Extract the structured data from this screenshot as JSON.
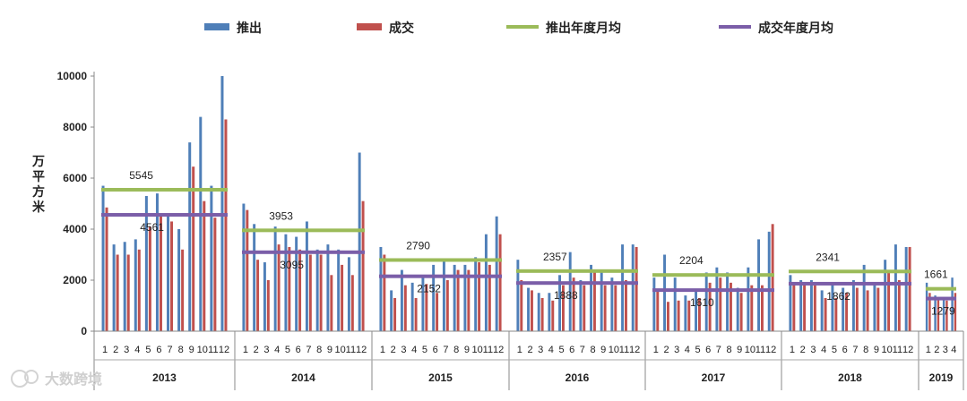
{
  "chart_data": {
    "type": "bar",
    "title": "",
    "ylabel": "万平方米",
    "ylim": [
      0,
      10000
    ],
    "yticks": [
      "0",
      "2000",
      "4000",
      "6000",
      "8000",
      "10000"
    ],
    "legend_position": "top",
    "legend": [
      {
        "name": "推出",
        "color": "#4f7fb8",
        "kind": "bar"
      },
      {
        "name": "成交",
        "color": "#c0504d",
        "kind": "bar"
      },
      {
        "name": "推出年度月均",
        "color": "#9bbb59",
        "kind": "line"
      },
      {
        "name": "成交年度月均",
        "color": "#7b5ea8",
        "kind": "line"
      }
    ],
    "years": [
      {
        "year": "2013",
        "months": [
          "1",
          "2",
          "3",
          "4",
          "5",
          "6",
          "7",
          "8",
          "9",
          "10",
          "11",
          "12"
        ],
        "supply": [
          5700,
          3400,
          3500,
          3600,
          5300,
          5400,
          4600,
          4000,
          7400,
          8400,
          5700,
          10000
        ],
        "deal": [
          4850,
          3000,
          3000,
          3200,
          4100,
          4500,
          4300,
          3200,
          6450,
          5100,
          4450,
          8300
        ],
        "supply_avg": 5545,
        "supply_avg_label": "5545",
        "deal_avg": 4561,
        "deal_avg_label": "4561"
      },
      {
        "year": "2014",
        "months": [
          "1",
          "2",
          "3",
          "4",
          "5",
          "6",
          "7",
          "8",
          "9",
          "10",
          "11",
          "12"
        ],
        "supply": [
          5000,
          4200,
          2700,
          4100,
          3800,
          3700,
          4300,
          3200,
          3400,
          3200,
          2900,
          7000
        ],
        "deal": [
          4750,
          2800,
          2000,
          3400,
          3300,
          3200,
          3000,
          3000,
          2200,
          2600,
          2200,
          5100
        ],
        "supply_avg": 3953,
        "supply_avg_label": "3953",
        "deal_avg": 3095,
        "deal_avg_label": "3095"
      },
      {
        "year": "2015",
        "months": [
          "1",
          "2",
          "3",
          "4",
          "5",
          "6",
          "7",
          "8",
          "9",
          "10",
          "11",
          "12"
        ],
        "supply": [
          3300,
          1600,
          2400,
          1900,
          2200,
          2600,
          2800,
          2600,
          2600,
          2900,
          3800,
          4500
        ],
        "deal": [
          3000,
          1300,
          1800,
          1300,
          1850,
          1500,
          2000,
          2400,
          2400,
          2700,
          2600,
          3800
        ],
        "supply_avg": 2790,
        "supply_avg_label": "2790",
        "deal_avg": 2152,
        "deal_avg_label": "2152"
      },
      {
        "year": "2016",
        "months": [
          "1",
          "2",
          "3",
          "4",
          "5",
          "6",
          "7",
          "8",
          "9",
          "10",
          "11",
          "12"
        ],
        "supply": [
          2800,
          1700,
          1500,
          1500,
          2200,
          3100,
          2000,
          2600,
          2400,
          2100,
          3400,
          3400
        ],
        "deal": [
          2000,
          1600,
          1300,
          1200,
          1800,
          2100,
          1800,
          2300,
          1800,
          1800,
          2000,
          3300
        ],
        "supply_avg": 2357,
        "supply_avg_label": "2357",
        "deal_avg": 1888,
        "deal_avg_label": "1888"
      },
      {
        "year": "2017",
        "months": [
          "1",
          "2",
          "3",
          "4",
          "5",
          "6",
          "7",
          "8",
          "9",
          "10",
          "11",
          "12"
        ],
        "supply": [
          2100,
          3000,
          2100,
          1400,
          1600,
          2300,
          2500,
          2300,
          1700,
          2500,
          3600,
          3900
        ],
        "deal": [
          1650,
          1150,
          1200,
          1200,
          1300,
          1900,
          2100,
          1900,
          1500,
          1800,
          1800,
          4200
        ],
        "supply_avg": 2204,
        "supply_avg_label": "2204",
        "deal_avg": 1610,
        "deal_avg_label": "1610"
      },
      {
        "year": "2018",
        "months": [
          "1",
          "2",
          "3",
          "4",
          "5",
          "6",
          "7",
          "8",
          "9",
          "10",
          "11",
          "12"
        ],
        "supply": [
          2200,
          2000,
          2000,
          1600,
          1900,
          1700,
          2000,
          2600,
          1800,
          2800,
          3400,
          3300
        ],
        "deal": [
          1900,
          1900,
          1800,
          1300,
          1300,
          1500,
          1700,
          1600,
          1700,
          2300,
          2000,
          3300
        ],
        "supply_avg": 2341,
        "supply_avg_label": "2341",
        "deal_avg": 1862,
        "deal_avg_label": "1862"
      },
      {
        "year": "2019",
        "months": [
          "1",
          "2",
          "3",
          "4"
        ],
        "supply": [
          1900,
          1400,
          1300,
          2100
        ],
        "deal": [
          1500,
          1300,
          1200,
          1500
        ],
        "supply_avg": 1661,
        "supply_avg_label": "1661",
        "deal_avg": 1279,
        "deal_avg_label": "1279"
      }
    ]
  },
  "watermark": {
    "text": "大数跨境",
    "icon": "brand-logo-icon"
  }
}
